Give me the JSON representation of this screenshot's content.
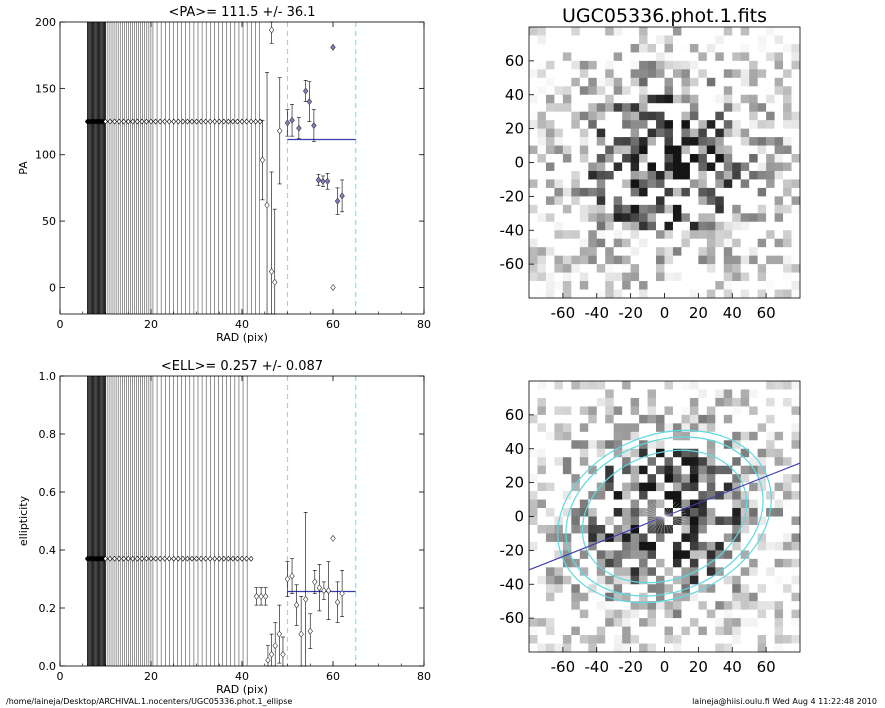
{
  "footer": {
    "left": "/home/laineja/Desktop/ARCHIVAL.1.nocenters/UGC05336.phot.1_ellipse",
    "right": "laineja@hiisi.oulu.fi  Wed Aug  4 11:22:48 2010"
  },
  "colors": {
    "fit_line": "#3b3bb0",
    "bounds": "#7fe0f0",
    "marker_fill": "#8080c0",
    "ellipse": "#5fd8e0"
  },
  "chart_data": [
    {
      "id": "pa",
      "type": "scatter",
      "title": "<PA>= 111.5 +/-  36.1",
      "xlabel": "RAD (pix)",
      "ylabel": "PA",
      "xlim": [
        0,
        80
      ],
      "ylim": [
        -20,
        200
      ],
      "xticks": [
        "0",
        "20",
        "40",
        "60",
        "80"
      ],
      "yticks": [
        "0",
        "50",
        "100",
        "150",
        "200"
      ],
      "fixed_value": 125,
      "fixed_radius_range": [
        6,
        44
      ],
      "bounds_x": [
        50,
        65
      ],
      "mean_line": {
        "x": [
          50,
          65
        ],
        "y": 111.5
      },
      "open_points": [
        {
          "x": 44.5,
          "y": 96,
          "err": 30
        },
        {
          "x": 45.5,
          "y": 62,
          "err": 100
        },
        {
          "x": 46.5,
          "y": 194,
          "err": 10
        },
        {
          "x": 46.5,
          "y": 12,
          "err": 75
        },
        {
          "x": 47.2,
          "y": 4,
          "err": 55
        },
        {
          "x": 48.3,
          "y": 118,
          "err": 40
        },
        {
          "x": 60.0,
          "y": 0,
          "err": 0
        }
      ],
      "fit_points": [
        {
          "x": 50,
          "y": 124,
          "err": 10
        },
        {
          "x": 51,
          "y": 126,
          "err": 12
        },
        {
          "x": 52.5,
          "y": 120,
          "err": 8
        },
        {
          "x": 54,
          "y": 148,
          "err": 8
        },
        {
          "x": 54.8,
          "y": 140,
          "err": 15
        },
        {
          "x": 55.8,
          "y": 122,
          "err": 12
        },
        {
          "x": 56.8,
          "y": 81,
          "err": 4
        },
        {
          "x": 57.8,
          "y": 80,
          "err": 4
        },
        {
          "x": 58.8,
          "y": 80,
          "err": 6
        },
        {
          "x": 60,
          "y": 181,
          "err": 0
        },
        {
          "x": 61,
          "y": 65,
          "err": 10
        },
        {
          "x": 62,
          "y": 69,
          "err": 12
        }
      ]
    },
    {
      "id": "ell",
      "type": "scatter",
      "title": "<ELL>= 0.257 +/-  0.087",
      "xlabel": "RAD (pix)",
      "ylabel": "ellipticity",
      "xlim": [
        0,
        80
      ],
      "ylim": [
        0,
        1
      ],
      "xticks": [
        "0",
        "20",
        "40",
        "60",
        "80"
      ],
      "yticks": [
        "0.0",
        "0.2",
        "0.4",
        "0.6",
        "0.8",
        "1.0"
      ],
      "fixed_value": 0.37,
      "fixed_radius_range": [
        6,
        42
      ],
      "bounds_x": [
        50,
        65
      ],
      "mean_line": {
        "x": [
          50,
          65
        ],
        "y": 0.257
      },
      "open_points": [
        {
          "x": 43.2,
          "y": 0.24,
          "err": 0.03
        },
        {
          "x": 44.2,
          "y": 0.24,
          "err": 0.03
        },
        {
          "x": 45.2,
          "y": 0.24,
          "err": 0.03
        },
        {
          "x": 45.7,
          "y": 0.02,
          "err": 0.05
        },
        {
          "x": 46.5,
          "y": 0.04,
          "err": 0.07
        },
        {
          "x": 47.3,
          "y": 0.07,
          "err": 0.08
        },
        {
          "x": 48.2,
          "y": 0.11,
          "err": 0.1
        },
        {
          "x": 49.0,
          "y": 0.04,
          "err": 0.06
        },
        {
          "x": 50.0,
          "y": 0.3,
          "err": 0.06
        },
        {
          "x": 51.0,
          "y": 0.31,
          "err": 0.06
        },
        {
          "x": 52.0,
          "y": 0.21,
          "err": 0.07
        },
        {
          "x": 53.0,
          "y": 0.11,
          "err": 0.13
        },
        {
          "x": 54.0,
          "y": 0.23,
          "err": 0.3
        },
        {
          "x": 55.0,
          "y": 0.12,
          "err": 0.06
        },
        {
          "x": 56.0,
          "y": 0.29,
          "err": 0.04
        },
        {
          "x": 57.0,
          "y": 0.27,
          "err": 0.08
        },
        {
          "x": 58.0,
          "y": 0.26,
          "err": 0.03
        },
        {
          "x": 59.0,
          "y": 0.26,
          "err": 0.1
        },
        {
          "x": 60.0,
          "y": 0.44,
          "err": 0.0
        },
        {
          "x": 61.0,
          "y": 0.22,
          "err": 0.07
        },
        {
          "x": 62.0,
          "y": 0.25,
          "err": 0.08
        }
      ]
    },
    {
      "id": "image",
      "type": "heatmap",
      "title": "UGC05336.phot.1.fits",
      "xlim": [
        -80,
        80
      ],
      "ylim": [
        -80,
        80
      ],
      "xticks": [
        "-60",
        "-40",
        "-20",
        "0",
        "20",
        "40",
        "60"
      ],
      "yticks": [
        "60",
        "40",
        "20",
        "0",
        "-20",
        "-40",
        "-60"
      ],
      "grid_cells": [
        32,
        32
      ],
      "colormap": "inverted grayscale"
    },
    {
      "id": "overlay",
      "type": "heatmap",
      "title": "",
      "xlim": [
        -80,
        80
      ],
      "ylim": [
        -80,
        80
      ],
      "xticks": [
        "-60",
        "-40",
        "-20",
        "0",
        "20",
        "40",
        "60"
      ],
      "yticks": [
        "60",
        "40",
        "20",
        "0",
        "-20",
        "-40",
        "-60"
      ],
      "grid_cells": [
        32,
        32
      ],
      "major_axis_pa_deg": 111.5,
      "ellipses": [
        {
          "a": 60,
          "ell": 0.257,
          "pa_deg": 111.5
        },
        {
          "a": 65,
          "ell": 0.257,
          "pa_deg": 111.5
        },
        {
          "a": 50,
          "ell": 0.257,
          "pa_deg": 111.5
        }
      ]
    }
  ]
}
